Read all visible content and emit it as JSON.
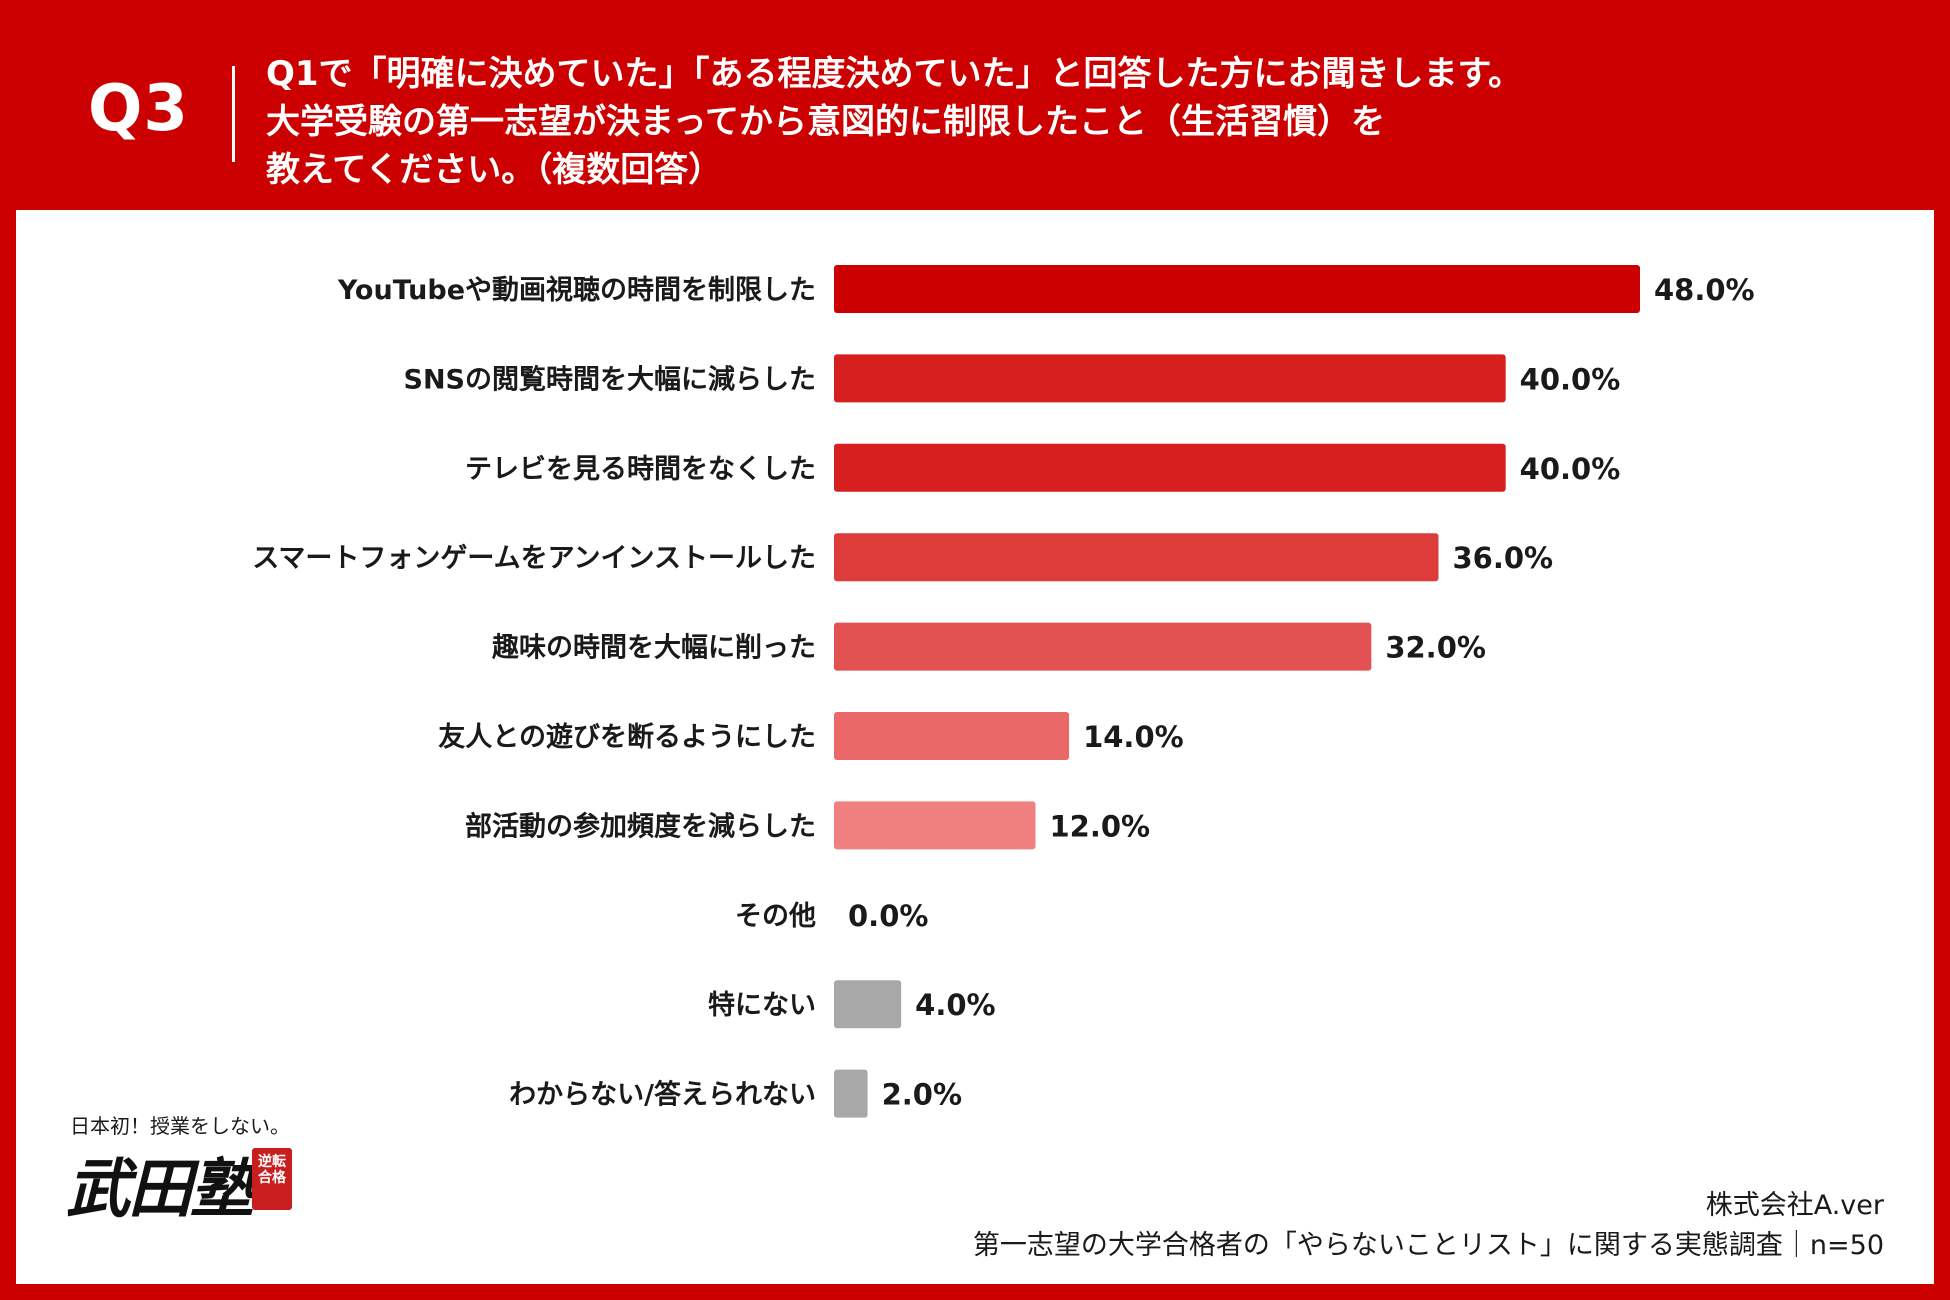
{
  "header": {
    "q_label": "Q3",
    "lines": [
      "Q1で「明確に決めていた」「ある程度決めていた」と回答した方にお聞きします。",
      "大学受験の第一志望が決まってから意図的に制限したこと（生活習慣）を",
      "教えてください。（複数回答）"
    ]
  },
  "chart_data": {
    "type": "bar",
    "orientation": "horizontal",
    "categories": [
      "YouTubeや動画視聴の時間を制限した",
      "SNSの閲覧時間を大幅に減らした",
      "テレビを見る時間をなくした",
      "スマートフォンゲームをアンインストールした",
      "趣味の時間を大幅に削った",
      "友人との遊びを断るようにした",
      "部活動の参加頻度を減らした",
      "その他",
      "特にない",
      "わからない/答えられない"
    ],
    "values": [
      48.0,
      40.0,
      40.0,
      36.0,
      32.0,
      14.0,
      12.0,
      0.0,
      4.0,
      2.0
    ],
    "value_labels": [
      "48.0%",
      "40.0%",
      "40.0%",
      "36.0%",
      "32.0%",
      "14.0%",
      "12.0%",
      "0.0%",
      "4.0%",
      "2.0%"
    ],
    "colors": [
      "#cc0000",
      "#d61f1f",
      "#d61f1f",
      "#de3b3b",
      "#e25252",
      "#ea6868",
      "#f08080",
      "#999999",
      "#a8a8a8",
      "#a8a8a8"
    ],
    "xlim": [
      0,
      48
    ]
  },
  "logo": {
    "tagline": "日本初！授業をしない。",
    "name": "武田塾",
    "stamp": "逆転合格"
  },
  "footer": {
    "company": "株式会社A.ver",
    "survey": "第一志望の大学合格者の「やらないことリスト」に関する実態調査｜n=50"
  }
}
